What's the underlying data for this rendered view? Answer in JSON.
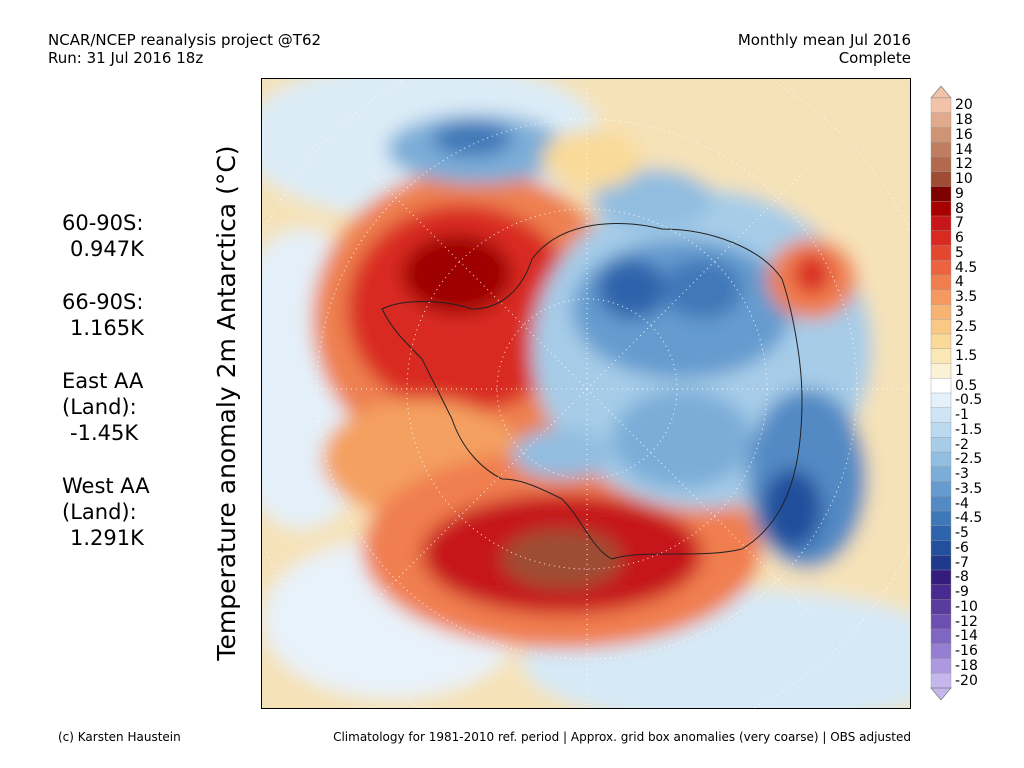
{
  "header": {
    "line1_left": "NCAR/NCEP reanalysis project @T62",
    "line2_left": "Run: 31 Jul 2016 18z",
    "line1_right": "Monthly mean Jul 2016",
    "line2_right": "Complete"
  },
  "axis_title": "Temperature anomaly 2m Antarctica (°C)",
  "stats": [
    {
      "name_lines": [
        "60-90S:"
      ],
      "value": "0.947K"
    },
    {
      "name_lines": [
        "66-90S:"
      ],
      "value": "1.165K"
    },
    {
      "name_lines": [
        "East AA",
        "(Land):"
      ],
      "value": "-1.45K"
    },
    {
      "name_lines": [
        "West AA",
        "(Land):"
      ],
      "value": "1.291K"
    }
  ],
  "map": {
    "projection": "south-polar-stereographic",
    "variable": "2m temperature anomaly",
    "unit": "°C",
    "palette_warm": "#c00000",
    "palette_cold": "#2c4aa6"
  },
  "colorbar": {
    "labels": [
      "20",
      "18",
      "16",
      "14",
      "12",
      "10",
      "9",
      "8",
      "7",
      "6",
      "5",
      "4.5",
      "4",
      "3.5",
      "3",
      "2.5",
      "2",
      "1.5",
      "1",
      "0.5",
      "-0.5",
      "-1",
      "-1.5",
      "-2",
      "-2.5",
      "-3",
      "-3.5",
      "-4",
      "-4.5",
      "-5",
      "-6",
      "-7",
      "-8",
      "-9",
      "-10",
      "-12",
      "-14",
      "-16",
      "-18",
      "-20"
    ],
    "colors": [
      "#f2c3a9",
      "#e2aa8c",
      "#cf9376",
      "#bf7d61",
      "#b2694d",
      "#9e4d34",
      "#7f0000",
      "#a80000",
      "#c6161a",
      "#d92a22",
      "#e44730",
      "#ec6340",
      "#f07e4f",
      "#f49a61",
      "#f7b371",
      "#f8c884",
      "#f9da99",
      "#fbe7b6",
      "#fbf2d6",
      "#ffffff",
      "#e3f1fb",
      "#cfe5f5",
      "#bbd9ef",
      "#a6cce8",
      "#91bde0",
      "#7badd8",
      "#659bcf",
      "#528ac4",
      "#3f78b8",
      "#2e64ab",
      "#22509c",
      "#1f3a8c",
      "#341c7d",
      "#472b8e",
      "#5a3c9f",
      "#6c4fb1",
      "#8066c3",
      "#967fd2",
      "#ad99df",
      "#c5b7ec"
    ]
  },
  "footer": {
    "left": "(c) Karsten Haustein",
    "right": "Climatology for 1981-2010 ref. period | Approx. grid box anomalies (very coarse) | OBS adjusted"
  }
}
